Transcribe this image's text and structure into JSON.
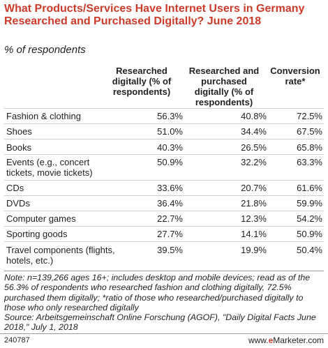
{
  "chart_data": {
    "type": "table",
    "title": "What Products/Services Have Internet Users in Germany Researched and Purchased Digitally? June 2018",
    "subtitle": "% of respondents",
    "columns": [
      "Researched digitally (% of respondents)",
      "Researched and purchased digitally (% of respondents)",
      "Conversion rate*"
    ],
    "rows": [
      {
        "label": "Fashion & clothing",
        "values": [
          "56.3%",
          "40.8%",
          "72.5%"
        ]
      },
      {
        "label": "Shoes",
        "values": [
          "51.0%",
          "34.4%",
          "67.5%"
        ]
      },
      {
        "label": "Books",
        "values": [
          "40.3%",
          "26.5%",
          "65.8%"
        ]
      },
      {
        "label": "Events (e.g., concert tickets, movie tickets)",
        "values": [
          "50.9%",
          "32.2%",
          "63.3%"
        ]
      },
      {
        "label": "CDs",
        "values": [
          "33.6%",
          "20.7%",
          "61.6%"
        ]
      },
      {
        "label": "DVDs",
        "values": [
          "36.4%",
          "21.8%",
          "59.9%"
        ]
      },
      {
        "label": "Computer games",
        "values": [
          "22.7%",
          "12.3%",
          "54.2%"
        ]
      },
      {
        "label": "Sporting goods",
        "values": [
          "27.7%",
          "14.1%",
          "50.9%"
        ]
      },
      {
        "label": "Travel components (flights, hotels, etc.)",
        "values": [
          "39.5%",
          "19.9%",
          "50.4%"
        ]
      }
    ]
  },
  "note": "Note: n=139,266 ages 16+; includes desktop and mobile devices; read as of the 56.3% of respondents who researched fashion and clothing digitally, 72.5% purchased them digitally; *ratio of those who researched/purchased digitally to those who only researched digitally",
  "source": "Source: Arbeitsgemeinschaft Online Forschung (AGOF), \"Daily Digital Facts June 2018,\" July 1, 2018",
  "footer": {
    "chart_id": "240787",
    "brand_prefix": "www.",
    "brand_e": "e",
    "brand_rest": "Marketer",
    "brand_suffix": ".com"
  },
  "colors": {
    "title": "#cc3b2a",
    "text": "#222222",
    "rule": "#9a9a9a"
  }
}
